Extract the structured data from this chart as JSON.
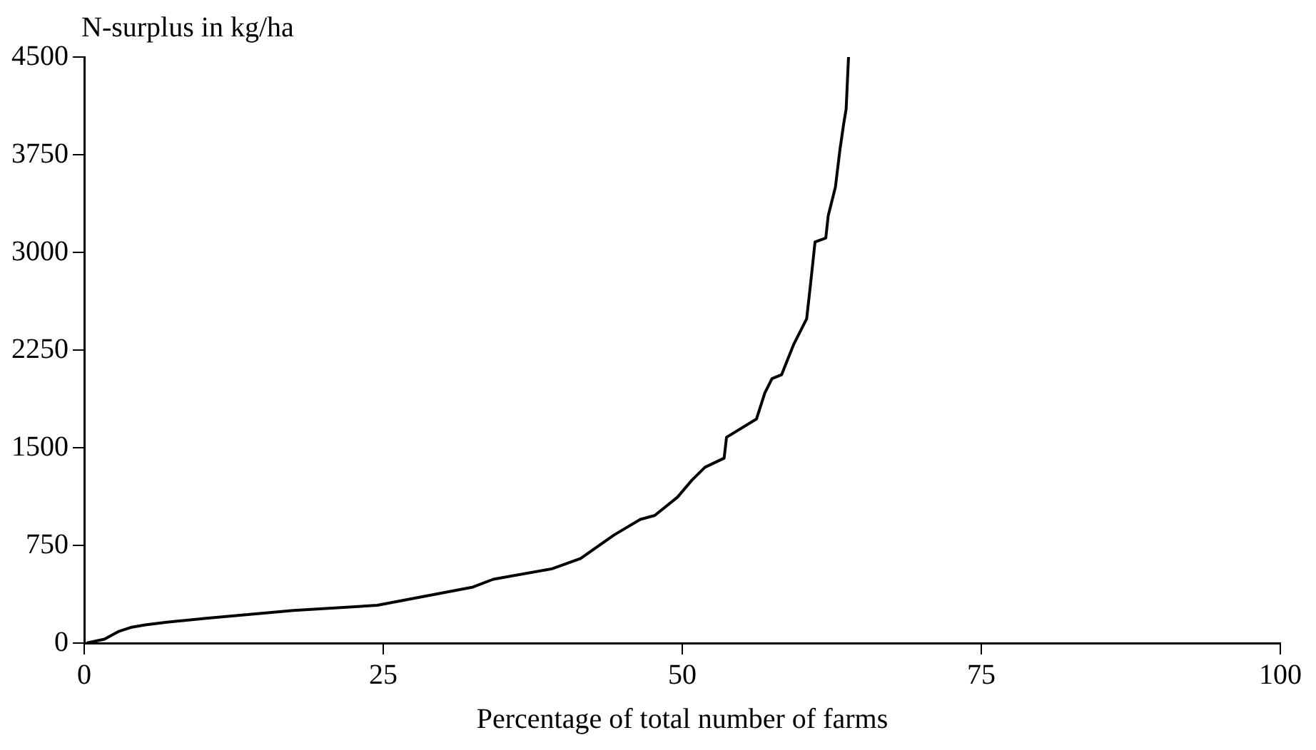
{
  "chart_data": {
    "type": "line",
    "xlabel": "Percentage of total number of farms",
    "ylabel": "N-surplus in kg/ha",
    "x": [
      0.2,
      1.7,
      2.9,
      3.9,
      5.1,
      6.9,
      10.2,
      17.5,
      24.5,
      28.5,
      32.5,
      34.2,
      39.1,
      41.5,
      44.3,
      46.5,
      47.7,
      49.6,
      50.8,
      51.9,
      53.5,
      53.7,
      56.2,
      56.9,
      57.5,
      58.3,
      59.3,
      60.4,
      60.8,
      61.1,
      62.0,
      62.2,
      62.8,
      63.2,
      63.5,
      63.7,
      63.9
    ],
    "series": [
      {
        "color": "#000000",
        "values": [
          0,
          30,
          90,
          120,
          140,
          160,
          190,
          250,
          290,
          360,
          430,
          490,
          570,
          650,
          830,
          950,
          980,
          1120,
          1250,
          1350,
          1420,
          1580,
          1720,
          1920,
          2030,
          2060,
          2290,
          2490,
          2820,
          3080,
          3110,
          3280,
          3500,
          3800,
          3990,
          4100,
          4500
        ]
      }
    ],
    "xlim": [
      0,
      100
    ],
    "xticks": [
      0,
      25,
      50,
      75,
      100
    ],
    "ylim": [
      0,
      4500
    ],
    "yticks": [
      0,
      750,
      1500,
      2250,
      3000,
      3750,
      4500
    ],
    "grid": false,
    "legend": false,
    "marker": "none",
    "line_style": "solid"
  }
}
